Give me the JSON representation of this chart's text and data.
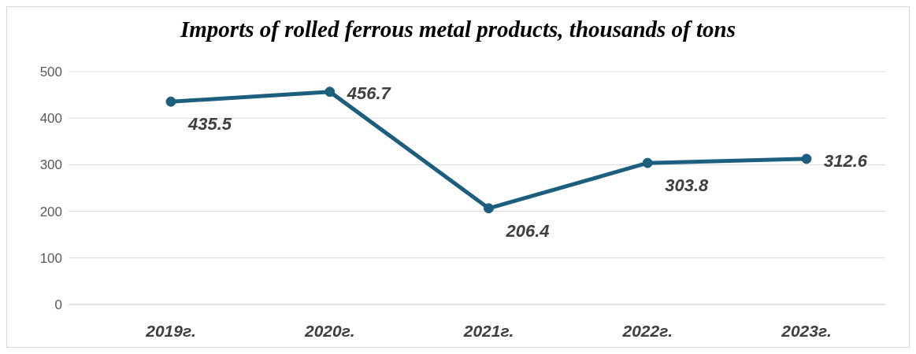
{
  "chart_data": {
    "type": "line",
    "title": "Imports of rolled ferrous metal products, thousands of tons",
    "categories": [
      "2019г.",
      "2020г.",
      "2021г.",
      "2022г.",
      "2023г."
    ],
    "series": [
      {
        "color": "#1b5e7e",
        "values": [
          435.5,
          456.7,
          206.4,
          303.8,
          312.6
        ]
      }
    ],
    "ylim": [
      0,
      500
    ],
    "yticks": [
      0,
      100,
      200,
      300,
      400,
      500
    ],
    "grid": "y",
    "marker": "circle",
    "line_style": "solid",
    "data_labels": true
  }
}
